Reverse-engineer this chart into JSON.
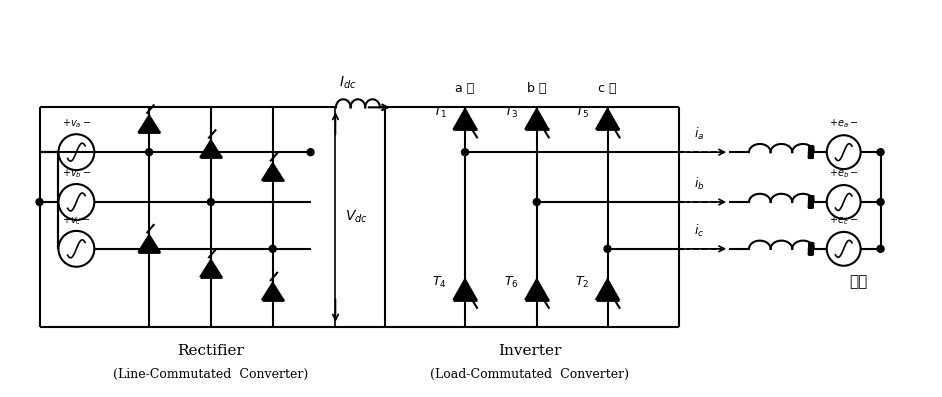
{
  "bg_color": "#ffffff",
  "fig_width": 9.42,
  "fig_height": 3.97,
  "rectifier_label": "Rectifier",
  "rectifier_sub": "(Line-Commutated  Converter)",
  "inverter_label": "Inverter",
  "inverter_sub": "(Load-Commutated  Converter)",
  "buha_label": "부하",
  "phase_labels": [
    "a 상",
    "b 상",
    "c 상"
  ],
  "thyristor_top_labels": [
    "$T_1$",
    "$T_3$",
    "$T_5$"
  ],
  "thyristor_bot_labels": [
    "$T_4$",
    "$T_6$",
    "$T_2$"
  ],
  "current_labels": [
    "$i_a$",
    "$i_b$",
    "$i_c$"
  ],
  "emf_labels": [
    "$+e_a -$",
    "$+e_b -$",
    "$+e_c -$"
  ],
  "src_labels": [
    "$+v_a -$",
    "$+v_b -$",
    "$+v_c -$"
  ]
}
